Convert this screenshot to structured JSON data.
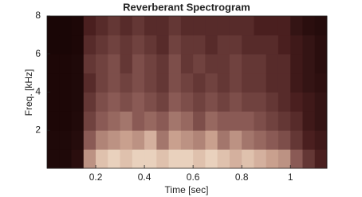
{
  "chart_data": {
    "type": "heatmap",
    "title": "Reverberant Spectrogram",
    "xlabel": "Time [sec]",
    "ylabel": "Freq. [kHz]",
    "x": [
      0,
      0.05,
      0.1,
      0.15,
      0.2,
      0.25,
      0.3,
      0.35,
      0.4,
      0.45,
      0.5,
      0.55,
      0.6,
      0.65,
      0.7,
      0.75,
      0.8,
      0.85,
      0.9,
      0.95,
      1,
      1.05,
      1.1,
      1.15
    ],
    "y": [
      0,
      1,
      2,
      3,
      4,
      5,
      6,
      7,
      8
    ],
    "z": [
      [
        0.05,
        0.05,
        0.1,
        0.7,
        0.85,
        0.9,
        0.85,
        0.9,
        0.9,
        0.85,
        0.9,
        0.9,
        0.85,
        0.9,
        0.85,
        0.8,
        0.85,
        0.8,
        0.75,
        0.7,
        0.5,
        0.35,
        0.25
      ],
      [
        0.05,
        0.05,
        0.08,
        0.5,
        0.65,
        0.7,
        0.75,
        0.7,
        0.8,
        0.6,
        0.75,
        0.7,
        0.65,
        0.75,
        0.6,
        0.7,
        0.6,
        0.55,
        0.5,
        0.45,
        0.35,
        0.25,
        0.2
      ],
      [
        0.04,
        0.04,
        0.06,
        0.4,
        0.5,
        0.55,
        0.6,
        0.5,
        0.55,
        0.5,
        0.6,
        0.55,
        0.45,
        0.55,
        0.5,
        0.5,
        0.5,
        0.45,
        0.4,
        0.35,
        0.3,
        0.2,
        0.15
      ],
      [
        0.04,
        0.04,
        0.05,
        0.35,
        0.45,
        0.5,
        0.45,
        0.5,
        0.45,
        0.4,
        0.5,
        0.45,
        0.4,
        0.45,
        0.4,
        0.45,
        0.4,
        0.4,
        0.35,
        0.3,
        0.25,
        0.2,
        0.15
      ],
      [
        0.04,
        0.04,
        0.05,
        0.3,
        0.4,
        0.45,
        0.4,
        0.45,
        0.4,
        0.35,
        0.45,
        0.4,
        0.35,
        0.4,
        0.35,
        0.4,
        0.35,
        0.35,
        0.3,
        0.3,
        0.2,
        0.15,
        0.12
      ],
      [
        0.04,
        0.04,
        0.05,
        0.35,
        0.4,
        0.45,
        0.35,
        0.45,
        0.4,
        0.35,
        0.45,
        0.35,
        0.4,
        0.35,
        0.35,
        0.4,
        0.35,
        0.35,
        0.3,
        0.3,
        0.2,
        0.15,
        0.1
      ],
      [
        0.03,
        0.03,
        0.04,
        0.3,
        0.35,
        0.4,
        0.35,
        0.4,
        0.35,
        0.3,
        0.4,
        0.35,
        0.35,
        0.3,
        0.35,
        0.35,
        0.3,
        0.3,
        0.3,
        0.25,
        0.2,
        0.15,
        0.1
      ],
      [
        0.03,
        0.03,
        0.04,
        0.25,
        0.3,
        0.35,
        0.3,
        0.35,
        0.3,
        0.3,
        0.35,
        0.3,
        0.3,
        0.3,
        0.3,
        0.3,
        0.3,
        0.25,
        0.25,
        0.25,
        0.15,
        0.1,
        0.08
      ]
    ],
    "clim": [
      0,
      1
    ],
    "colormap": [
      "#140303",
      "#4a1f1f",
      "#8a5a55",
      "#c9a08e",
      "#fff2dc"
    ],
    "xlim": [
      0,
      1.15
    ],
    "ylim": [
      0,
      8
    ],
    "xticks": [
      0.2,
      0.4,
      0.6,
      0.8,
      1
    ],
    "yticks": [
      2,
      4,
      6,
      8
    ]
  }
}
